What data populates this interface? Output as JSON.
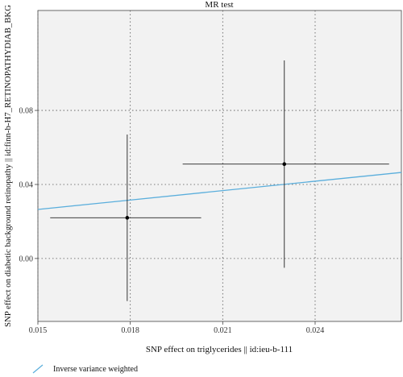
{
  "chart_data": {
    "type": "scatter",
    "title": "MR test",
    "xlabel": "SNP effect on triglycerides || id:ieu-b-111",
    "ylabel": "SNP effect on diabetic background retinopathy || id:finn-b-H7_RETINOPATHYDIAB_BKG",
    "xlim": [
      0.015,
      0.0268
    ],
    "ylim": [
      -0.034,
      0.134
    ],
    "x_ticks": [
      0.015,
      0.018,
      0.021,
      0.024
    ],
    "x_tick_labels": [
      "0.015",
      "0.018",
      "0.021",
      "0.024"
    ],
    "y_ticks": [
      0.0,
      0.04,
      0.08
    ],
    "y_tick_labels": [
      "0.00",
      "0.04",
      "0.08"
    ],
    "grid": true,
    "grid_style": "dotted",
    "legend_position": "bottom-left",
    "points": [
      {
        "x": 0.0179,
        "y": 0.022,
        "x_low": 0.0154,
        "x_high": 0.0203,
        "y_low": -0.023,
        "y_high": 0.067
      },
      {
        "x": 0.023,
        "y": 0.051,
        "x_low": 0.0197,
        "x_high": 0.0264,
        "y_low": -0.005,
        "y_high": 0.107
      }
    ],
    "fit_lines": [
      {
        "name": "Inverse variance weighted",
        "color": "#5aaedc",
        "x": [
          0.015,
          0.0268
        ],
        "y": [
          0.0265,
          0.0465
        ]
      }
    ],
    "colors": {
      "panel_background": "#f2f2f2",
      "grid": "#555555",
      "point": "#000000",
      "error_bar": "#222222"
    }
  }
}
